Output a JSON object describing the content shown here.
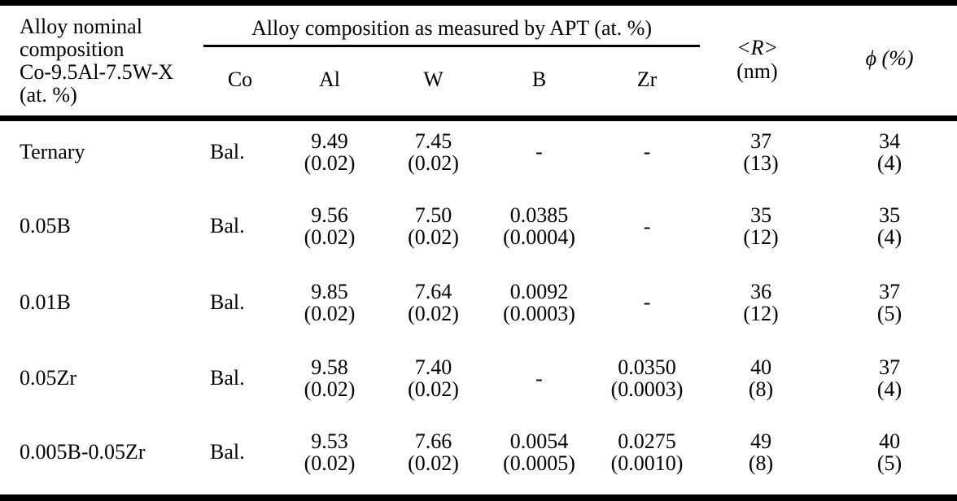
{
  "table": {
    "col1_header": {
      "line1": "Alloy nominal",
      "line2": "composition",
      "line3": "Co-9.5Al-7.5W-X",
      "line4": "(at. %)"
    },
    "group_header": "Alloy composition as measured by APT (at. %)",
    "subheaders": {
      "co": "Co",
      "al": "Al",
      "w": "W",
      "b": "B",
      "zr": "Zr"
    },
    "r_header": {
      "line1": "<R>",
      "line2": "(nm)"
    },
    "phi_header": "ϕ (%)",
    "rows": [
      {
        "label": "Ternary",
        "co": "Bal.",
        "al": {
          "v": "9.49",
          "u": "(0.02)"
        },
        "w": {
          "v": "7.45",
          "u": "(0.02)"
        },
        "b": {
          "v": "-"
        },
        "zr": {
          "v": "-"
        },
        "r": {
          "v": "37",
          "u": "(13)"
        },
        "phi": {
          "v": "34",
          "u": "(4)"
        }
      },
      {
        "label": "0.05B",
        "co": "Bal.",
        "al": {
          "v": "9.56",
          "u": "(0.02)"
        },
        "w": {
          "v": "7.50",
          "u": "(0.02)"
        },
        "b": {
          "v": "0.0385",
          "u": "(0.0004)"
        },
        "zr": {
          "v": "-"
        },
        "r": {
          "v": "35",
          "u": "(12)"
        },
        "phi": {
          "v": "35",
          "u": "(4)"
        }
      },
      {
        "label": "0.01B",
        "co": "Bal.",
        "al": {
          "v": "9.85",
          "u": "(0.02)"
        },
        "w": {
          "v": "7.64",
          "u": "(0.02)"
        },
        "b": {
          "v": "0.0092",
          "u": "(0.0003)"
        },
        "zr": {
          "v": "-"
        },
        "r": {
          "v": "36",
          "u": "(12)"
        },
        "phi": {
          "v": "37",
          "u": "(5)"
        }
      },
      {
        "label": "0.05Zr",
        "co": "Bal.",
        "al": {
          "v": "9.58",
          "u": "(0.02)"
        },
        "w": {
          "v": "7.40",
          "u": "(0.02)"
        },
        "b": {
          "v": "-"
        },
        "zr": {
          "v": "0.0350",
          "u": "(0.0003)"
        },
        "r": {
          "v": "40",
          "u": "(8)"
        },
        "phi": {
          "v": "37",
          "u": "(4)"
        }
      },
      {
        "label": "0.005B-0.05Zr",
        "co": "Bal.",
        "al": {
          "v": "9.53",
          "u": "(0.02)"
        },
        "w": {
          "v": "7.66",
          "u": "(0.02)"
        },
        "b": {
          "v": "0.0054",
          "u": "(0.0005)"
        },
        "zr": {
          "v": "0.0275",
          "u": "(0.0010)"
        },
        "r": {
          "v": "49",
          "u": "(8)"
        },
        "phi": {
          "v": "40",
          "u": "(5)"
        }
      }
    ]
  }
}
